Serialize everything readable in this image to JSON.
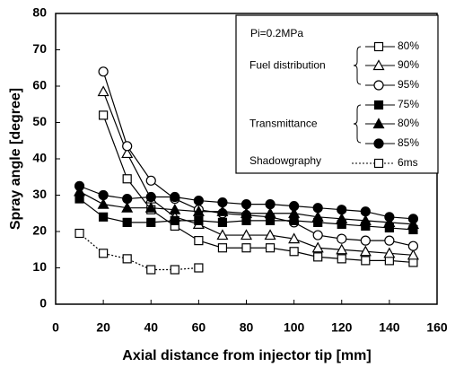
{
  "chart_data": {
    "type": "line",
    "xlabel": "Axial distance from injector tip [mm]",
    "ylabel": "Spray angle [degree]",
    "xlim": [
      0,
      160
    ],
    "xticks": [
      0,
      20,
      40,
      60,
      80,
      100,
      120,
      140,
      160
    ],
    "ylim": [
      0,
      80
    ],
    "yticks": [
      0,
      10,
      20,
      30,
      40,
      50,
      60,
      70,
      80
    ],
    "grid": false,
    "legend_title": "Pi=0.2MPa",
    "legend_position": "upper right",
    "series": [
      {
        "name": "80%",
        "group": "Fuel distribution",
        "color": "#000000",
        "marker": "square-open",
        "dash": "solid",
        "x": [
          20,
          30,
          40,
          50,
          60,
          70,
          80,
          90,
          100,
          110,
          120,
          130,
          140,
          150
        ],
        "values": [
          52,
          34.5,
          26,
          21.5,
          17.5,
          15.5,
          15.5,
          15.5,
          14.5,
          13,
          12.5,
          12,
          12,
          11.5
        ]
      },
      {
        "name": "90%",
        "group": "Fuel distribution",
        "color": "#000000",
        "marker": "triangle-open",
        "dash": "solid",
        "x": [
          20,
          30,
          40,
          50,
          60,
          70,
          80,
          90,
          100,
          110,
          120,
          130,
          140,
          150
        ],
        "values": [
          58.5,
          41.5,
          29,
          24,
          22,
          19,
          19,
          19,
          18,
          15.5,
          15,
          14.5,
          14,
          13.5
        ]
      },
      {
        "name": "95%",
        "group": "Fuel distribution",
        "color": "#000000",
        "marker": "circle-open",
        "dash": "solid",
        "x": [
          20,
          30,
          40,
          50,
          60,
          70,
          80,
          90,
          100,
          110,
          120,
          130,
          140,
          150
        ],
        "values": [
          64,
          43.5,
          34,
          29,
          26,
          25,
          24.5,
          24,
          22.5,
          19,
          18,
          17.5,
          17.5,
          16
        ]
      },
      {
        "name": "75%",
        "group": "Transmittance",
        "color": "#000000",
        "marker": "square-filled",
        "dash": "solid",
        "x": [
          10,
          20,
          30,
          40,
          50,
          60,
          70,
          80,
          90,
          100,
          110,
          120,
          130,
          140,
          150
        ],
        "values": [
          29,
          24,
          22.5,
          22.5,
          23,
          23,
          22.5,
          23,
          23,
          23,
          22.5,
          22,
          21.5,
          21,
          20.5
        ]
      },
      {
        "name": "80%",
        "group": "Transmittance",
        "color": "#000000",
        "marker": "triangle-filled",
        "dash": "solid",
        "x": [
          10,
          20,
          30,
          40,
          50,
          60,
          70,
          80,
          90,
          100,
          110,
          120,
          130,
          140,
          150
        ],
        "values": [
          31,
          27.5,
          26.5,
          26.5,
          26,
          25.5,
          25.5,
          25,
          25,
          25,
          24,
          23.5,
          23,
          22.5,
          22
        ]
      },
      {
        "name": "85%",
        "group": "Transmittance",
        "color": "#000000",
        "marker": "circle-filled",
        "dash": "solid",
        "x": [
          10,
          20,
          30,
          40,
          50,
          60,
          70,
          80,
          90,
          100,
          110,
          120,
          130,
          140,
          150
        ],
        "values": [
          32.5,
          30,
          29,
          29.5,
          29.5,
          28.5,
          28,
          27.5,
          27.5,
          27,
          26.5,
          26,
          25.5,
          24,
          23.5
        ]
      },
      {
        "name": "6ms",
        "group": "Shadowgraphy",
        "color": "#000000",
        "marker": "square-open",
        "dash": "dotted",
        "x": [
          10,
          20,
          30,
          40,
          50,
          60
        ],
        "values": [
          19.5,
          14,
          12.5,
          9.5,
          9.5,
          10
        ]
      }
    ]
  }
}
